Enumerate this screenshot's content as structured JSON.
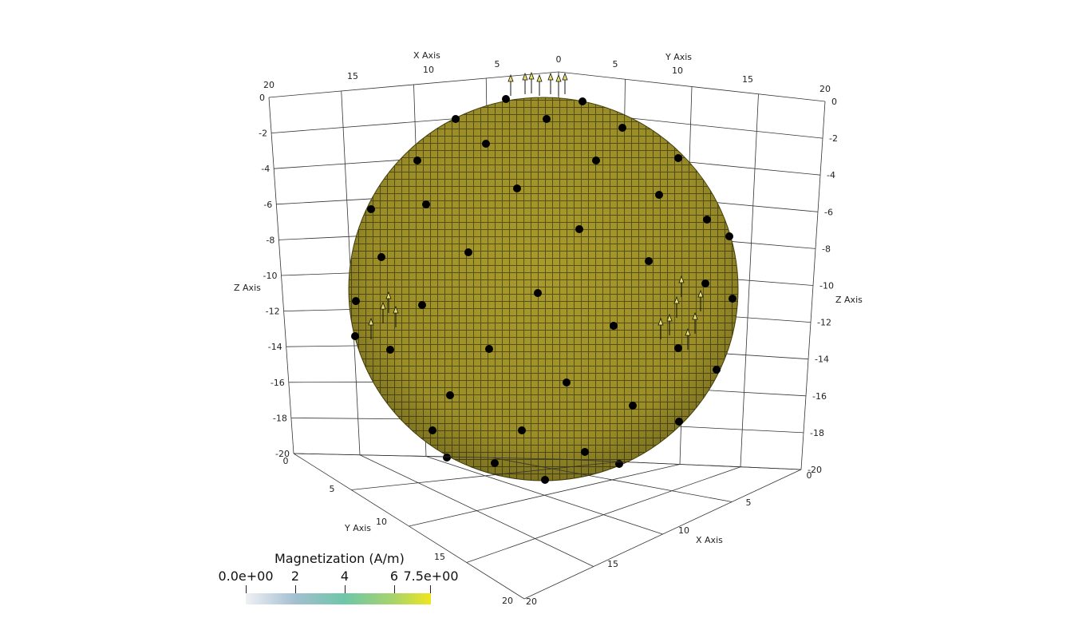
{
  "viewer": {
    "axes": {
      "x_axis_title": "X Axis",
      "y_axis_title": "Y Axis",
      "z_axis_title": "Z Axis",
      "x_ticks_top": [
        "20",
        "15",
        "10",
        "5",
        "0"
      ],
      "y_ticks_top": [
        "5",
        "10",
        "15",
        "20"
      ],
      "z_ticks_left": [
        "0",
        "-2",
        "-4",
        "-6",
        "-8",
        "-10",
        "-12",
        "-14",
        "-16",
        "-18",
        "-20"
      ],
      "z_ticks_right": [
        "0",
        "-2",
        "-4",
        "-6",
        "-8",
        "-10",
        "-12",
        "-14",
        "-16",
        "-18",
        "-20"
      ],
      "y_ticks_bottom": [
        "0",
        "5",
        "10",
        "15",
        "20"
      ],
      "x_ticks_bottom": [
        "0",
        "5",
        "10",
        "15",
        "20"
      ]
    },
    "object": {
      "type": "voxel-sphere",
      "face_color": "#9e9125",
      "dot_color": "#000000"
    },
    "colorbar": {
      "title": "Magnetization (A/m)",
      "labels": [
        "0.0e+00",
        "2",
        "4",
        "6",
        "7.5e+00"
      ],
      "values": [
        0,
        2,
        4,
        6,
        7.5
      ],
      "colors": [
        "#f0f0f5",
        "#a3bfd0",
        "#6ec6a9",
        "#a9d46a",
        "#f0e51e"
      ]
    }
  }
}
